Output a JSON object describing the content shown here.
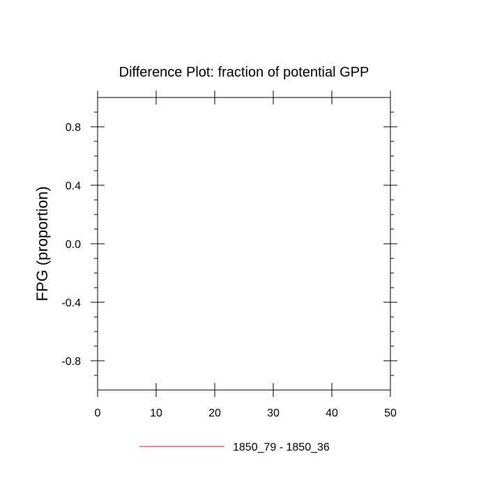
{
  "chart_data": {
    "type": "line",
    "title": "Difference Plot: fraction of potential GPP",
    "xlabel": "",
    "ylabel": "FPG  (proportion)",
    "xlim": [
      0,
      50
    ],
    "ylim": [
      -1,
      1
    ],
    "x_ticks": [
      0,
      10,
      20,
      30,
      40,
      50
    ],
    "x_tick_labels": [
      "0",
      "10",
      "20",
      "30",
      "40",
      "50"
    ],
    "y_ticks": [
      -0.8,
      -0.4,
      0.0,
      0.4,
      0.8
    ],
    "y_tick_labels": [
      "-0.8",
      "-0.4",
      "0.0",
      "0.4",
      "0.8"
    ],
    "grid": false,
    "legend_position": "bottom-center",
    "series": [
      {
        "name": "1850_79 - 1850_36",
        "color": "#e06666",
        "x": [],
        "y": []
      }
    ]
  }
}
